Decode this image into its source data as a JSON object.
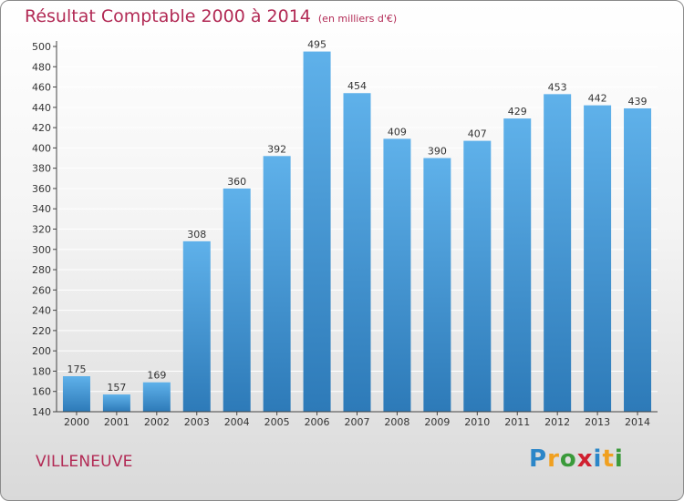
{
  "title": "Résultat Comptable 2000 à 2014",
  "subtitle": "(en milliers d'€)",
  "location": "VILLENEUVE",
  "brand": {
    "letters": [
      "P",
      "r",
      "o",
      "x",
      "i",
      "t",
      "i"
    ],
    "colors": [
      "#2b86c8",
      "#f0a020",
      "#3a9a3a",
      "#d02030",
      "#2b86c8",
      "#f0a020",
      "#3a9a3a"
    ]
  },
  "colors": {
    "title": "#b22a55",
    "bar_top": "#5fb1ea",
    "bar_bottom": "#2d7ab8",
    "grid": "#ffffff"
  },
  "chart_data": {
    "type": "bar",
    "title": "Résultat Comptable 2000 à 2014",
    "subtitle": "(en milliers d'€)",
    "xlabel": "",
    "ylabel": "",
    "ylim": [
      140,
      500
    ],
    "ytick_step": 20,
    "grid": true,
    "categories": [
      "2000",
      "2001",
      "2002",
      "2003",
      "2004",
      "2005",
      "2006",
      "2007",
      "2008",
      "2009",
      "2010",
      "2011",
      "2012",
      "2013",
      "2014"
    ],
    "values": [
      175,
      157,
      169,
      308,
      360,
      392,
      495,
      454,
      409,
      390,
      407,
      429,
      453,
      442,
      439
    ]
  }
}
